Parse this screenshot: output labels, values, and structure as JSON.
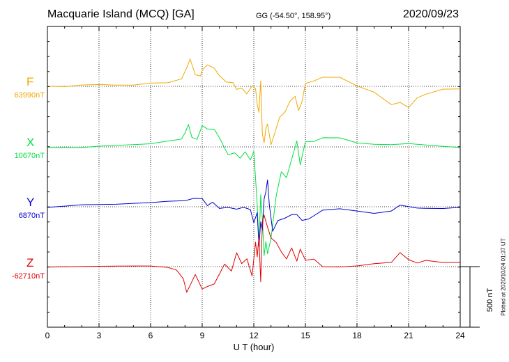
{
  "header": {
    "title": "Macquarie Island (MCQ)  [GA]",
    "coords": "GG (-54.50°, 158.95°)",
    "date": "2020/09/23"
  },
  "colors": {
    "F": "#f0a800",
    "X": "#00e040",
    "Y": "#0000d0",
    "Z": "#e00000"
  },
  "axis": {
    "xlabel": "U T (hour)",
    "ticks": [
      "0",
      "3",
      "6",
      "9",
      "12",
      "15",
      "18",
      "21",
      "24"
    ]
  },
  "scale_label": "500 nT",
  "plotted_note": "Plotted at 2020/10/24 01:37 UT",
  "chart_data": {
    "type": "line",
    "x_unit": "hour UT",
    "xlim": [
      0,
      24
    ],
    "x_ticks": [
      0,
      3,
      6,
      9,
      12,
      15,
      18,
      21,
      24
    ],
    "x_label": "U T (hour)",
    "scale_bar_nT": 500,
    "grid": true,
    "series": [
      {
        "name": "F",
        "baseline_label": "63990nT",
        "color": "#f0a800",
        "x": [
          0,
          1,
          2,
          3,
          4,
          5,
          6,
          7,
          7.8,
          8.1,
          8.3,
          8.6,
          8.9,
          9.0,
          9.3,
          9.7,
          10.0,
          10.4,
          10.8,
          11.0,
          11.3,
          11.6,
          11.9,
          12.1,
          12.2,
          12.3,
          12.4,
          12.5,
          12.6,
          12.7,
          12.8,
          13.0,
          13.2,
          13.5,
          13.8,
          14.1,
          14.4,
          14.6,
          14.8,
          15.0,
          15.5,
          16.0,
          17.0,
          18.0,
          19.0,
          20.0,
          20.5,
          21.0,
          21.5,
          22.0,
          23.0,
          24.0
        ],
        "dy": [
          0,
          0,
          15,
          20,
          15,
          15,
          30,
          30,
          60,
          150,
          220,
          90,
          80,
          130,
          175,
          150,
          90,
          40,
          35,
          -20,
          -10,
          -60,
          5,
          -20,
          -150,
          -220,
          40,
          -400,
          -470,
          -350,
          -310,
          -480,
          -390,
          -250,
          -210,
          -120,
          -80,
          -200,
          -130,
          20,
          40,
          70,
          70,
          0,
          -50,
          -150,
          -130,
          -170,
          -90,
          -60,
          -20,
          -20
        ]
      },
      {
        "name": "X",
        "baseline_label": "10670nT",
        "color": "#00e040",
        "x": [
          0,
          1,
          2,
          3,
          4,
          5,
          6,
          7,
          7.8,
          8.0,
          8.2,
          8.4,
          8.7,
          9.0,
          9.3,
          9.7,
          10.0,
          10.5,
          10.9,
          11.2,
          11.5,
          11.8,
          12.0,
          12.2,
          12.3,
          12.4,
          12.5,
          12.6,
          12.7,
          12.8,
          13.0,
          13.3,
          13.6,
          13.9,
          14.2,
          14.5,
          14.7,
          15.0,
          15.5,
          16.0,
          17.0,
          18.0,
          19.0,
          20.0,
          21.0,
          22.0,
          23.0,
          24.0
        ],
        "dy": [
          0,
          0,
          0,
          10,
          15,
          20,
          25,
          45,
          60,
          110,
          180,
          75,
          60,
          175,
          150,
          150,
          80,
          -60,
          -45,
          -90,
          -40,
          -110,
          -40,
          -480,
          -820,
          -400,
          -600,
          -900,
          -780,
          -880,
          -750,
          -400,
          -200,
          -250,
          -100,
          50,
          -150,
          40,
          40,
          70,
          70,
          30,
          20,
          20,
          30,
          20,
          10,
          0
        ]
      },
      {
        "name": "Y",
        "baseline_label": "6870nT",
        "color": "#0000d0",
        "x": [
          0,
          1,
          2,
          3,
          4,
          5,
          6,
          7,
          8.0,
          8.5,
          9.0,
          9.3,
          9.6,
          10.0,
          10.5,
          11.0,
          11.4,
          11.8,
          12.0,
          12.2,
          12.3,
          12.4,
          12.5,
          12.6,
          12.7,
          12.8,
          12.9,
          13.1,
          13.4,
          13.8,
          14.2,
          14.5,
          14.8,
          15.2,
          16.0,
          17.0,
          18.0,
          19.0,
          20.0,
          20.5,
          21.0,
          21.5,
          22.0,
          23.0,
          24.0
        ],
        "dy": [
          0,
          10,
          20,
          20,
          20,
          25,
          30,
          40,
          45,
          65,
          65,
          10,
          40,
          -10,
          0,
          -15,
          0,
          -20,
          -130,
          -50,
          -330,
          -130,
          -200,
          60,
          120,
          220,
          20,
          -200,
          -110,
          -90,
          -60,
          -60,
          -110,
          -100,
          -30,
          -20,
          -40,
          -60,
          -40,
          10,
          0,
          -10,
          -10,
          -10,
          0
        ]
      },
      {
        "name": "Z",
        "baseline_label": "-62710nT",
        "color": "#e00000",
        "x": [
          0,
          1,
          2,
          3,
          4,
          5,
          6,
          7,
          7.5,
          7.9,
          8.1,
          8.3,
          8.6,
          9.0,
          9.3,
          9.7,
          10.0,
          10.3,
          10.7,
          11.0,
          11.3,
          11.6,
          11.9,
          12.1,
          12.2,
          12.3,
          12.4,
          12.5,
          12.6,
          12.8,
          13.0,
          13.3,
          13.6,
          13.9,
          14.2,
          14.5,
          14.7,
          15.0,
          15.5,
          16.0,
          17.0,
          18.0,
          19.0,
          20.0,
          20.5,
          21.0,
          21.5,
          22.0,
          23.0,
          24.0
        ],
        "dy": [
          0,
          0,
          0,
          0,
          0,
          0,
          0,
          -10,
          -30,
          -100,
          -210,
          -150,
          -60,
          -180,
          -160,
          -140,
          -60,
          20,
          -40,
          110,
          20,
          60,
          -80,
          200,
          80,
          250,
          -120,
          380,
          430,
          330,
          240,
          200,
          120,
          60,
          150,
          40,
          140,
          50,
          60,
          0,
          0,
          10,
          30,
          40,
          120,
          60,
          30,
          50,
          30,
          30
        ]
      }
    ]
  }
}
